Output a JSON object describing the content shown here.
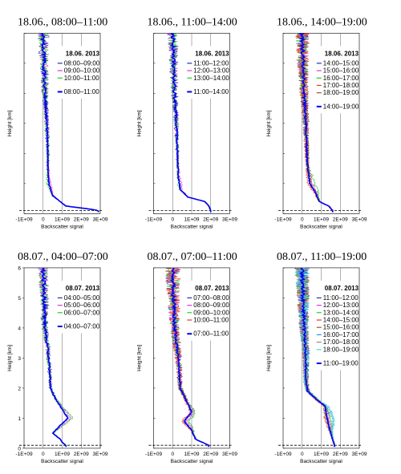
{
  "chart_data": [
    {
      "type": "line",
      "title": "18.06., 08:00–11:00",
      "date_label": "18.06. 2013",
      "xlabel": "Backscatter signal",
      "ylabel": "Height [km]",
      "xticks": [
        "-1E+09",
        "0",
        "1E+09",
        "2E+09",
        "3E+09"
      ],
      "xlim": [
        -1000000000.0,
        3000000000.0
      ],
      "ylim": [
        0,
        6
      ],
      "yticks": [],
      "series": [
        {
          "name": "08:00–09:00",
          "color": "#2233aa",
          "width": 0.6,
          "noise": 0.35,
          "bump": 0.0,
          "seed": 11
        },
        {
          "name": "09:00–10:00",
          "color": "#dd33dd",
          "width": 0.6,
          "noise": 0.3,
          "bump": 0.08,
          "seed": 12
        },
        {
          "name": "10:00–11:00",
          "color": "#22cc22",
          "width": 0.6,
          "noise": 0.3,
          "bump": -0.08,
          "seed": 13
        }
      ],
      "mean": {
        "name": "08:00–11:00",
        "color": "#0000ee",
        "width": 1.6
      },
      "profile": [
        [
          0.1,
          2.9
        ],
        [
          0.15,
          2.5
        ],
        [
          0.25,
          1.2
        ],
        [
          0.4,
          0.9
        ],
        [
          0.6,
          0.5
        ],
        [
          1.0,
          0.3
        ],
        [
          1.5,
          0.25
        ],
        [
          2.0,
          0.25
        ],
        [
          3.0,
          0.2
        ],
        [
          4.0,
          0.1
        ],
        [
          5.0,
          0.05
        ],
        [
          6.0,
          0.0
        ]
      ]
    },
    {
      "type": "line",
      "title": "18.06., 11:00–14:00",
      "date_label": "18.06. 2013",
      "xlabel": "Backscatter signal",
      "ylabel": "Height [km]",
      "xticks": [
        "-1E+09",
        "0",
        "1E+09",
        "2E+09",
        "3E+09"
      ],
      "xlim": [
        -1000000000.0,
        3000000000.0
      ],
      "ylim": [
        0,
        6
      ],
      "yticks": [],
      "series": [
        {
          "name": "11:00–12:00",
          "color": "#2233aa",
          "width": 0.6,
          "noise": 0.35,
          "bump": 0.0,
          "seed": 21
        },
        {
          "name": "12:00–13:00",
          "color": "#dd33dd",
          "width": 0.6,
          "noise": 0.3,
          "bump": 0.1,
          "seed": 22
        },
        {
          "name": "13:00–14:00",
          "color": "#22cc22",
          "width": 0.6,
          "noise": 0.3,
          "bump": -0.05,
          "seed": 23
        }
      ],
      "mean": {
        "name": "11:00–14:00",
        "color": "#0000ee",
        "width": 1.6
      },
      "profile": [
        [
          0.1,
          2.0
        ],
        [
          0.25,
          1.9
        ],
        [
          0.4,
          1.7
        ],
        [
          0.55,
          0.8
        ],
        [
          0.8,
          0.4
        ],
        [
          1.2,
          0.3
        ],
        [
          2.0,
          0.25
        ],
        [
          3.0,
          0.2
        ],
        [
          4.0,
          0.1
        ],
        [
          5.0,
          0.05
        ],
        [
          6.0,
          0.0
        ]
      ]
    },
    {
      "type": "line",
      "title": "18.06., 14:00–19:00",
      "date_label": "18.06. 2013",
      "xlabel": "Backscatter signal",
      "ylabel": "Height [km]",
      "xticks": [
        "-1E+09",
        "0",
        "1E+09",
        "2E+09",
        "3E+09"
      ],
      "xlim": [
        -1000000000.0,
        3000000000.0
      ],
      "ylim": [
        0,
        6
      ],
      "yticks": [],
      "series": [
        {
          "name": "14:00–15:00",
          "color": "#2233aa",
          "width": 0.6,
          "noise": 0.4,
          "bump": 0.0,
          "seed": 31
        },
        {
          "name": "15:00–16:00",
          "color": "#dd33dd",
          "width": 0.6,
          "noise": 0.4,
          "bump": 0.15,
          "seed": 32
        },
        {
          "name": "16:00–17:00",
          "color": "#22cc22",
          "width": 0.6,
          "noise": 0.4,
          "bump": 0.25,
          "seed": 33
        },
        {
          "name": "17:00–18:00",
          "color": "#ee3322",
          "width": 0.6,
          "noise": 0.45,
          "bump": -0.1,
          "seed": 34
        },
        {
          "name": "18:00–19:00",
          "color": "#a0522d",
          "width": 0.6,
          "noise": 0.45,
          "bump": 0.05,
          "seed": 35
        }
      ],
      "mean": {
        "name": "14:00–19:00",
        "color": "#0000ee",
        "width": 1.6
      },
      "profile": [
        [
          0.1,
          1.6
        ],
        [
          0.25,
          1.4
        ],
        [
          0.4,
          0.9
        ],
        [
          0.7,
          0.7
        ],
        [
          1.0,
          0.4
        ],
        [
          1.5,
          0.3
        ],
        [
          2.0,
          0.25
        ],
        [
          3.0,
          0.2
        ],
        [
          4.0,
          0.1
        ],
        [
          5.0,
          0.05
        ],
        [
          6.0,
          0.0
        ]
      ]
    },
    {
      "type": "line",
      "title": "08.07., 04:00–07:00",
      "date_label": "08.07. 2013",
      "xlabel": "Backscatter signal",
      "ylabel": "Height [km]",
      "xticks": [
        "-1E+09",
        "0",
        "1E+09",
        "2E+09",
        "3E+09"
      ],
      "xlim": [
        -1000000000.0,
        3000000000.0
      ],
      "ylim": [
        0,
        6
      ],
      "yticks": [
        "0",
        "1",
        "2",
        "3",
        "4",
        "5",
        "6"
      ],
      "series": [
        {
          "name": "04:00–05:00",
          "color": "#2233aa",
          "width": 0.6,
          "noise": 0.35,
          "bump": 0.0,
          "seed": 41
        },
        {
          "name": "05:00–06:00",
          "color": "#dd33dd",
          "width": 0.6,
          "noise": 0.3,
          "bump": 0.15,
          "seed": 42
        },
        {
          "name": "06:00–07:00",
          "color": "#22cc22",
          "width": 0.6,
          "noise": 0.3,
          "bump": 0.25,
          "seed": 43
        }
      ],
      "mean": {
        "name": "04:00–07:00",
        "color": "#0000ee",
        "width": 1.6
      },
      "profile": [
        [
          0.1,
          1.2
        ],
        [
          0.2,
          1.0
        ],
        [
          0.3,
          0.9
        ],
        [
          0.5,
          0.5
        ],
        [
          0.7,
          0.8
        ],
        [
          1.0,
          1.3
        ],
        [
          1.3,
          1.0
        ],
        [
          1.7,
          0.6
        ],
        [
          2.0,
          0.4
        ],
        [
          3.0,
          0.3
        ],
        [
          4.0,
          0.1
        ],
        [
          5.0,
          0.05
        ],
        [
          6.0,
          0.0
        ]
      ]
    },
    {
      "type": "line",
      "title": "08.07., 07:00–11:00",
      "date_label": "08.07. 2013",
      "xlabel": "Backscatter signal",
      "ylabel": "Height [km]",
      "xticks": [
        "-1E+09",
        "0",
        "1E+09",
        "2E+09",
        "3E+09"
      ],
      "xlim": [
        -1000000000.0,
        3000000000.0
      ],
      "ylim": [
        0,
        6
      ],
      "yticks": [],
      "series": [
        {
          "name": "07:00–08:00",
          "color": "#2233aa",
          "width": 0.6,
          "noise": 0.45,
          "bump": 0.0,
          "seed": 51
        },
        {
          "name": "08:00–09:00",
          "color": "#dd33dd",
          "width": 0.6,
          "noise": 0.45,
          "bump": 0.15,
          "seed": 52
        },
        {
          "name": "09:00–10:00",
          "color": "#22cc22",
          "width": 0.6,
          "noise": 0.45,
          "bump": 0.25,
          "seed": 53
        },
        {
          "name": "10:00–11:00",
          "color": "#ee3322",
          "width": 0.6,
          "noise": 0.5,
          "bump": -0.1,
          "seed": 54
        }
      ],
      "mean": {
        "name": "07:00–11:00",
        "color": "#0000ee",
        "width": 1.6
      },
      "profile": [
        [
          0.1,
          1.9
        ],
        [
          0.3,
          1.2
        ],
        [
          0.6,
          1.0
        ],
        [
          0.9,
          0.6
        ],
        [
          1.2,
          1.0
        ],
        [
          1.6,
          0.7
        ],
        [
          2.0,
          0.4
        ],
        [
          3.0,
          0.3
        ],
        [
          4.0,
          0.1
        ],
        [
          5.0,
          0.05
        ],
        [
          6.0,
          0.0
        ]
      ]
    },
    {
      "type": "line",
      "title": "08.07., 11:00–19:00",
      "date_label": "08.07. 2013",
      "xlabel": "Backscatter signal",
      "ylabel": "Height [km]",
      "xticks": [
        "-1E+09",
        "0",
        "1E+09",
        "2E+09",
        "3E+09"
      ],
      "xlim": [
        -1000000000.0,
        3000000000.0
      ],
      "ylim": [
        0,
        6
      ],
      "yticks": [],
      "series": [
        {
          "name": "11:00–12:00",
          "color": "#2233aa",
          "width": 0.6,
          "noise": 0.45,
          "bump": 0.0,
          "seed": 61
        },
        {
          "name": "12:00–13:00",
          "color": "#dd33dd",
          "width": 0.6,
          "noise": 0.45,
          "bump": 0.12,
          "seed": 62
        },
        {
          "name": "13:00–14:00",
          "color": "#22cc22",
          "width": 0.6,
          "noise": 0.45,
          "bump": 0.2,
          "seed": 63
        },
        {
          "name": "14:00–15:00",
          "color": "#ee3322",
          "width": 0.6,
          "noise": 0.45,
          "bump": -0.1,
          "seed": 64
        },
        {
          "name": "15:00–16:00",
          "color": "#a0522d",
          "width": 0.6,
          "noise": 0.45,
          "bump": 0.05,
          "seed": 65
        },
        {
          "name": "16:00–17:00",
          "color": "#1e90ff",
          "width": 0.6,
          "noise": 0.45,
          "bump": 0.3,
          "seed": 66
        },
        {
          "name": "17:00–18:00",
          "color": "#888888",
          "width": 0.6,
          "noise": 0.45,
          "bump": -0.05,
          "seed": 67
        },
        {
          "name": "18:00–19:00",
          "color": "#40e0d0",
          "width": 0.6,
          "noise": 0.45,
          "bump": 0.35,
          "seed": 68
        }
      ],
      "mean": {
        "name": "11:00–19:00",
        "color": "#0000ee",
        "width": 1.6
      },
      "profile": [
        [
          0.1,
          1.7
        ],
        [
          0.3,
          1.6
        ],
        [
          0.5,
          1.5
        ],
        [
          1.0,
          1.3
        ],
        [
          1.4,
          1.2
        ],
        [
          1.6,
          0.8
        ],
        [
          1.9,
          0.3
        ],
        [
          2.2,
          0.2
        ],
        [
          3.0,
          0.2
        ],
        [
          4.0,
          0.1
        ],
        [
          5.0,
          0.05
        ],
        [
          6.0,
          0.0
        ]
      ]
    }
  ]
}
